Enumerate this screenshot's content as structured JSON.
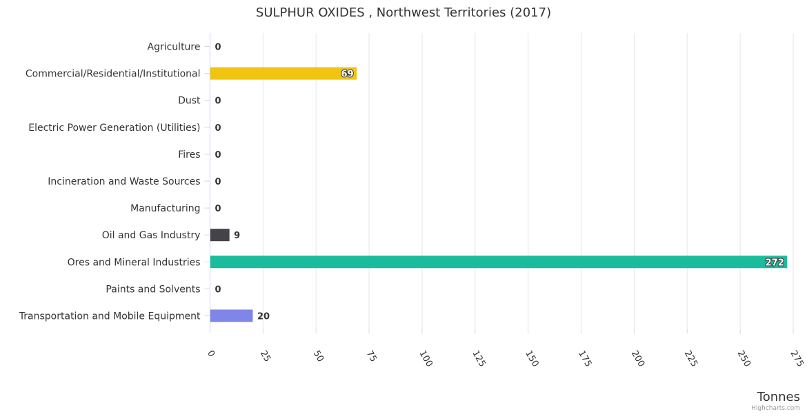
{
  "chart_data": {
    "type": "bar",
    "orientation": "horizontal",
    "title": "SULPHUR OXIDES , Northwest Territories (2017)",
    "xlabel": "Tonnes",
    "categories": [
      "Agriculture",
      "Commercial/Residential/Institutional",
      "Dust",
      "Electric Power Generation (Utilities)",
      "Fires",
      "Incineration and Waste Sources",
      "Manufacturing",
      "Oil and Gas Industry",
      "Ores and Mineral Industries",
      "Paints and Solvents",
      "Transportation and Mobile Equipment"
    ],
    "values": [
      0,
      69,
      0,
      0,
      0,
      0,
      0,
      9,
      272,
      0,
      20
    ],
    "data_labels": [
      "0",
      "69",
      "0",
      "0",
      "0",
      "0",
      "0",
      "9",
      "272",
      "0",
      "20"
    ],
    "colors": [
      "#7cb5ec",
      "#f1c40f",
      "#2b908f",
      "#e4d354",
      "#f45b5b",
      "#91e8e1",
      "#8085e9",
      "#434348",
      "#1abc9c",
      "#f7a35c",
      "#8085e9"
    ],
    "xlim": [
      0,
      275
    ],
    "ticks": [
      0,
      25,
      50,
      75,
      100,
      125,
      150,
      175,
      200,
      225,
      250,
      275
    ],
    "tick_labels": [
      "0",
      "25",
      "50",
      "75",
      "100",
      "125",
      "150",
      "175",
      "200",
      "225",
      "250",
      "275"
    ],
    "grid": true,
    "legend": false
  },
  "credits": "Highcharts.com"
}
